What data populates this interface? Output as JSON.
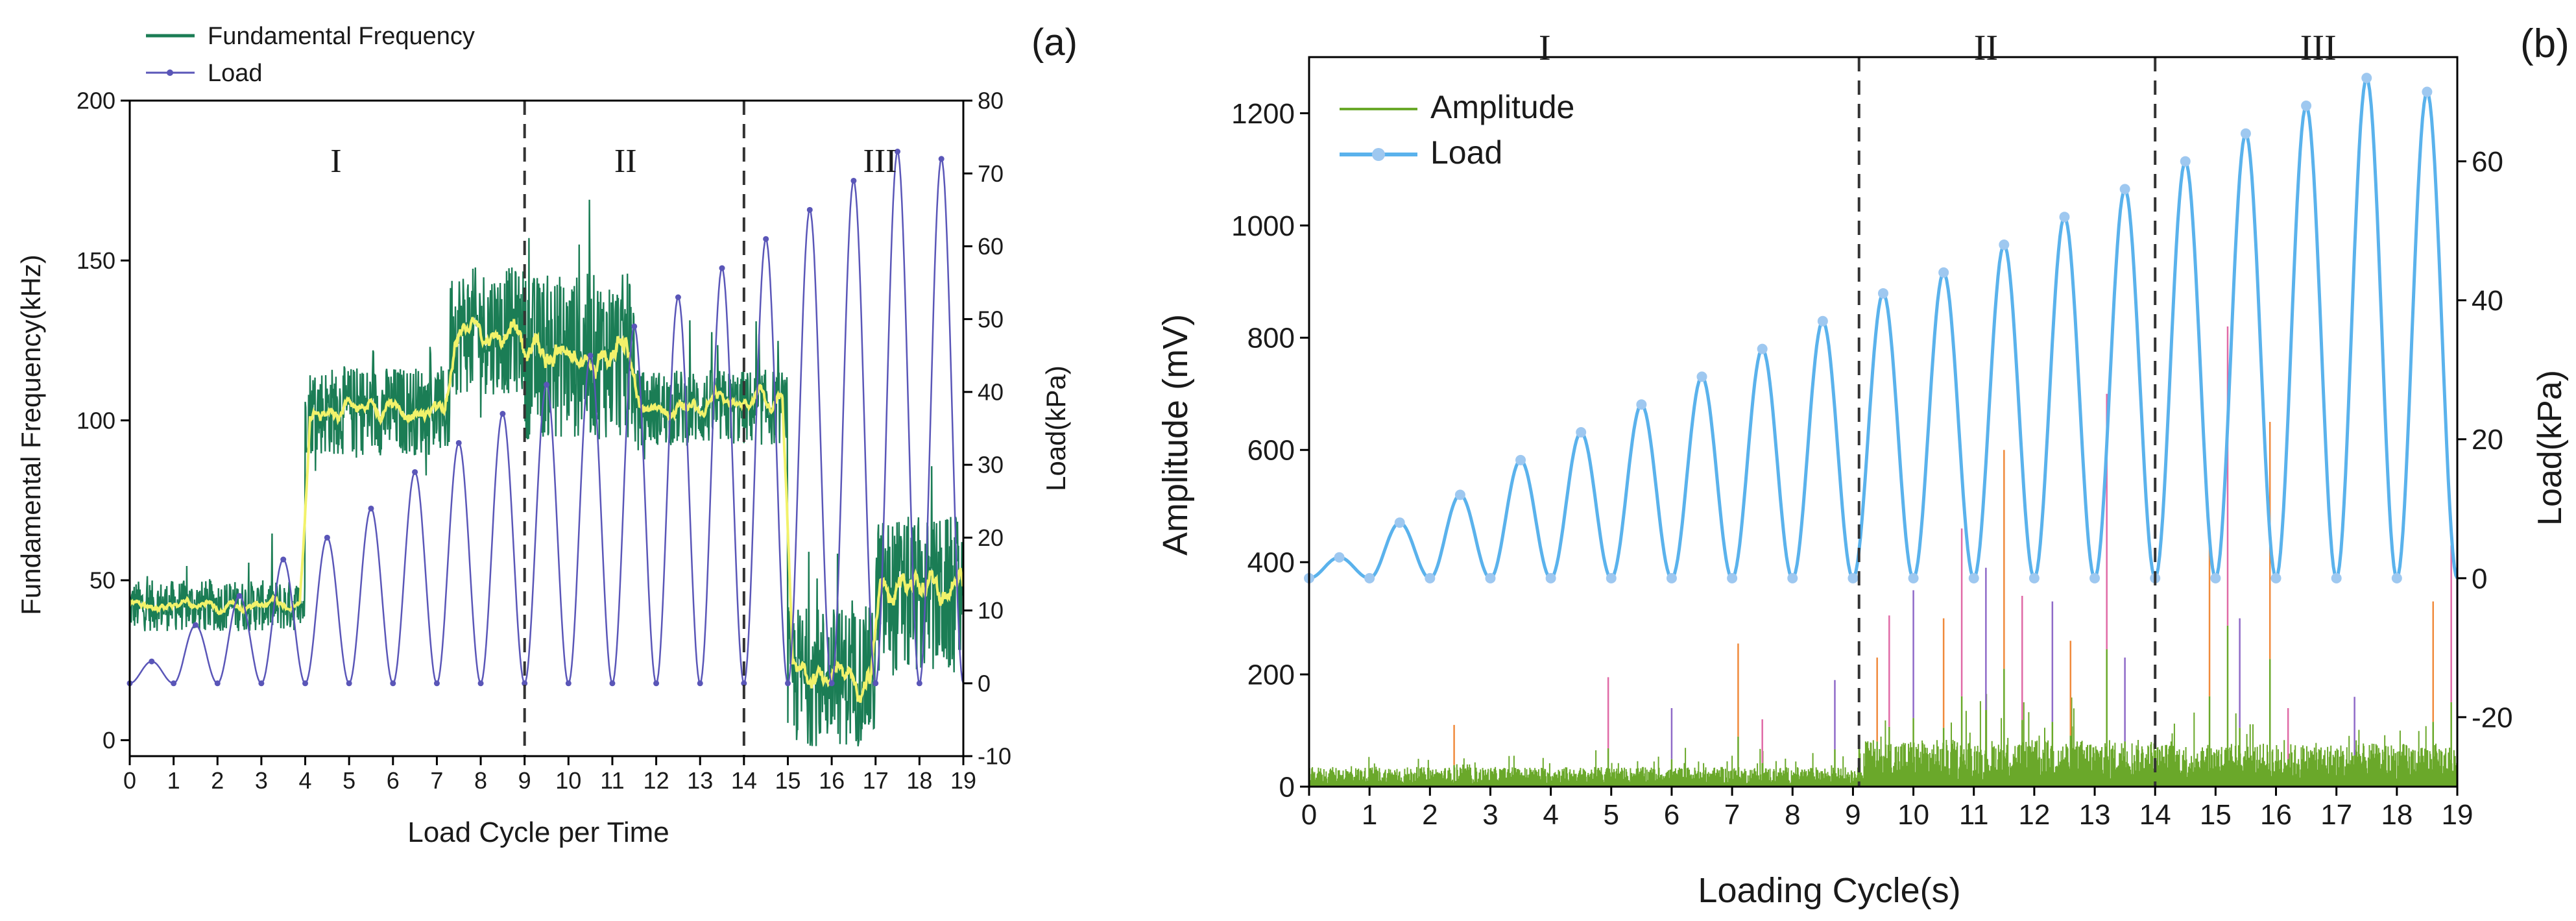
{
  "chart_data": [
    {
      "type": "line",
      "panel_label": "(a)",
      "xlabel": "Load Cycle per Time",
      "ylabel": "Fundamental Frequency(kHz)",
      "y2label": "Load(kPa)",
      "xlim": [
        0,
        19
      ],
      "ylim": [
        -5,
        200
      ],
      "y2lim": [
        -10,
        80
      ],
      "xticks": [
        "0",
        "1",
        "2",
        "3",
        "4",
        "5",
        "6",
        "7",
        "8",
        "9",
        "10",
        "11",
        "12",
        "13",
        "14",
        "15",
        "16",
        "17",
        "18",
        "19"
      ],
      "yticks": [
        "0",
        "50",
        "100",
        "150",
        "200"
      ],
      "y2ticks": [
        "-10",
        "0",
        "10",
        "20",
        "30",
        "40",
        "50",
        "60",
        "70",
        "80"
      ],
      "legend": [
        "Fundamental Frequency",
        "Load"
      ],
      "stage_dividers": [
        9,
        14
      ],
      "stage_labels": [
        {
          "text": "I",
          "x": 4.7
        },
        {
          "text": "II",
          "x": 11.3
        },
        {
          "text": "III",
          "x": 17.1
        }
      ],
      "series": [
        {
          "name": "Fundamental Frequency",
          "axis": "left",
          "color": "#1b7d55",
          "smooth_color": "#f2f26a",
          "segments": [
            {
              "x": [
                0,
                4
              ],
              "mean": 42,
              "spread": 8
            },
            {
              "x": [
                4,
                7.3
              ],
              "mean": 103,
              "spread": 14
            },
            {
              "x": [
                7.3,
                9
              ],
              "mean": 128,
              "spread": 20
            },
            {
              "x": [
                9,
                11.5
              ],
              "mean": 120,
              "spread": 26
            },
            {
              "x": [
                11.5,
                15
              ],
              "mean": 104,
              "spread": 12
            },
            {
              "x": [
                15,
                17
              ],
              "mean": 20,
              "spread": 22
            },
            {
              "x": [
                17,
                19
              ],
              "mean": 45,
              "spread": 25
            }
          ]
        },
        {
          "name": "Load",
          "axis": "right",
          "color": "#5a56b8",
          "min": 0,
          "peaks": [
            3,
            8,
            12,
            17,
            20,
            24,
            29,
            33,
            37,
            41,
            45,
            49,
            53,
            57,
            61,
            65,
            69,
            73,
            72
          ]
        }
      ]
    },
    {
      "type": "line",
      "panel_label": "(b)",
      "xlabel": "Loading Cycle(s)",
      "ylabel": "Amplitude (mV)",
      "y2label": "Load(kPa)",
      "xlim": [
        0,
        19
      ],
      "ylim": [
        0,
        1300
      ],
      "y2lim": [
        -30,
        75
      ],
      "xticks": [
        "0",
        "1",
        "2",
        "3",
        "4",
        "5",
        "6",
        "7",
        "8",
        "9",
        "10",
        "11",
        "12",
        "13",
        "14",
        "15",
        "16",
        "17",
        "18",
        "19"
      ],
      "yticks": [
        "0",
        "200",
        "400",
        "600",
        "800",
        "1000",
        "1200"
      ],
      "y2ticks": [
        "-20",
        "0",
        "20",
        "40",
        "60"
      ],
      "legend": [
        "Amplitude",
        "Load"
      ],
      "stage_dividers": [
        9.1,
        14
      ],
      "stage_labels": [
        {
          "text": "I",
          "x": 3.9
        },
        {
          "text": "II",
          "x": 11.2
        },
        {
          "text": "III",
          "x": 16.7
        }
      ],
      "series": [
        {
          "name": "Amplitude",
          "axis": "left",
          "color": "#6aa82a",
          "base_levels": [
            {
              "x": [
                0,
                9.1
              ],
              "level": 25
            },
            {
              "x": [
                9.1,
                14
              ],
              "level": 60
            },
            {
              "x": [
                14,
                19
              ],
              "level": 55
            }
          ],
          "spikes": [
            {
              "x": 2.4,
              "y": 110
            },
            {
              "x": 4.95,
              "y": 195
            },
            {
              "x": 6.0,
              "y": 140
            },
            {
              "x": 7.1,
              "y": 255
            },
            {
              "x": 7.5,
              "y": 120
            },
            {
              "x": 8.7,
              "y": 190
            },
            {
              "x": 9.4,
              "y": 230
            },
            {
              "x": 9.6,
              "y": 305
            },
            {
              "x": 10.0,
              "y": 350
            },
            {
              "x": 10.5,
              "y": 300
            },
            {
              "x": 10.8,
              "y": 460
            },
            {
              "x": 11.2,
              "y": 390
            },
            {
              "x": 11.5,
              "y": 600
            },
            {
              "x": 11.8,
              "y": 340
            },
            {
              "x": 12.3,
              "y": 330
            },
            {
              "x": 12.6,
              "y": 260
            },
            {
              "x": 13.2,
              "y": 700
            },
            {
              "x": 13.5,
              "y": 230
            },
            {
              "x": 14.9,
              "y": 460
            },
            {
              "x": 15.2,
              "y": 820
            },
            {
              "x": 15.4,
              "y": 300
            },
            {
              "x": 15.9,
              "y": 650
            },
            {
              "x": 16.2,
              "y": 140
            },
            {
              "x": 17.3,
              "y": 160
            },
            {
              "x": 18.6,
              "y": 330
            },
            {
              "x": 18.9,
              "y": 430
            }
          ]
        },
        {
          "name": "Load",
          "axis": "right",
          "color": "#5ab2ec",
          "min": 0,
          "peaks": [
            3,
            8,
            12,
            17,
            21,
            25,
            29,
            33,
            37,
            41,
            44,
            48,
            52,
            56,
            60,
            64,
            68,
            72,
            70
          ]
        }
      ]
    }
  ]
}
